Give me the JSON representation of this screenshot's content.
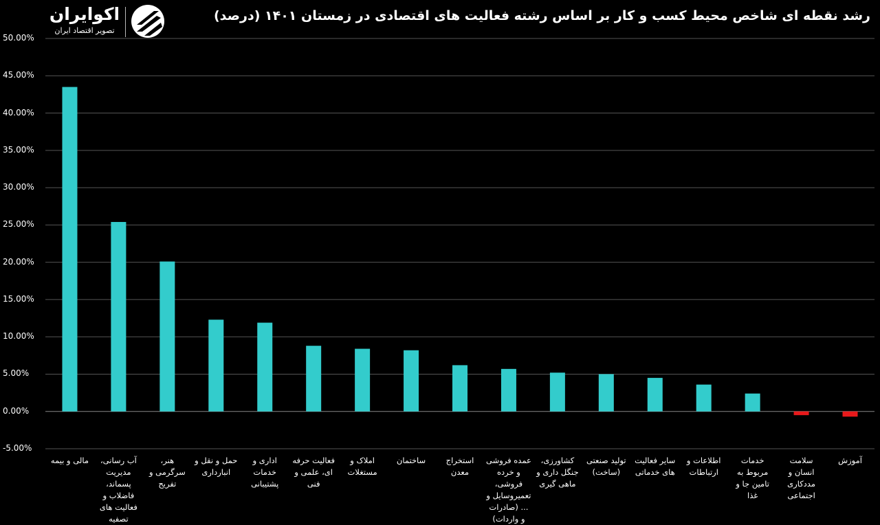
{
  "title": "رشد نقطه ای شاخص محیط کسب و کار بر اساس رشته فعالیت های اقتصادی در زمستان ۱۴۰۱ (درصد)",
  "logo": {
    "name": "اکوایران",
    "tagline": "تصویر اقتصاد ایران"
  },
  "colors": {
    "background": "#000000",
    "positive": "#33CCCC",
    "negative": "#E8191B",
    "grid": "#555555"
  },
  "chart_data": {
    "type": "bar",
    "ylim": [
      -5,
      50
    ],
    "yticks": [
      -5,
      0,
      5,
      10,
      15,
      20,
      25,
      30,
      35,
      40,
      45,
      50
    ],
    "ytick_labels": [
      "-5.00%",
      "0.00%",
      "5.00%",
      "10.00%",
      "15.00%",
      "20.00%",
      "25.00%",
      "30.00%",
      "35.00%",
      "40.00%",
      "45.00%",
      "50.00%"
    ],
    "grid": true,
    "categories": [
      "مالی و بیمه",
      "آب رسانی، مدیریت پسماند، فاضلاب و فعالیت های تصفیه",
      "هنر، سرگرمی و تفریح",
      "حمل و نقل و انبارداری",
      "اداری و خدمات پشتیبانی",
      "فعالیت حرفه ای، علمی و فنی",
      "املاک و مستغلات",
      "ساختمان",
      "استخراج معدن",
      "عمده فروشی و خرده فروشی، تعمیروسایل و ... (صادرات و واردات)",
      "کشاورزی، جنگل داری و ماهی گیری",
      "تولید صنعتی (ساخت)",
      "سایر فعالیت های خدماتی",
      "اطلاعات و ارتباطات",
      "خدمات مربوط به تامین جا و غذا",
      "سلامت انسان و مددکاری اجتماعی",
      "آموزش"
    ],
    "values": [
      43.5,
      25.4,
      20.1,
      12.3,
      11.9,
      8.8,
      8.4,
      8.2,
      6.2,
      5.7,
      5.2,
      5.0,
      4.5,
      3.6,
      2.4,
      -0.5,
      -0.7
    ]
  }
}
